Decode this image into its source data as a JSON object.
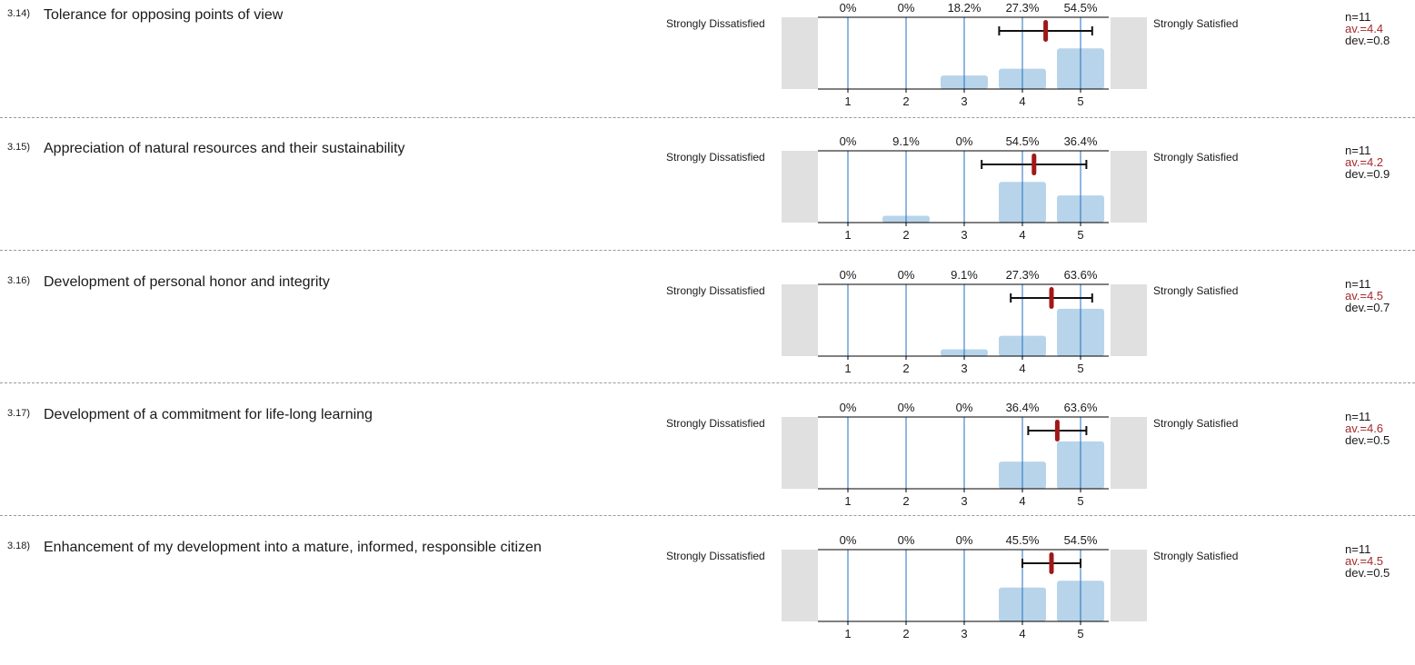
{
  "labels": {
    "left": "Strongly Dissatisfied",
    "right": "Strongly Satisfied"
  },
  "colors": {
    "bar": "#b7d4ea",
    "gridline": "#1f6fc0",
    "mean": "#a01818",
    "side": "#e0e0e0"
  },
  "chart_data": [
    {
      "type": "bar",
      "number": "3.14)",
      "title": "Tolerance for opposing points of view",
      "categories": [
        "1",
        "2",
        "3",
        "4",
        "5"
      ],
      "values": [
        0,
        0,
        18.2,
        27.3,
        54.5
      ],
      "value_labels": [
        "0%",
        "0%",
        "18.2%",
        "27.3%",
        "54.5%"
      ],
      "n": "n=11",
      "av": "av.=4.4",
      "dev": "dev.=0.8",
      "mean": 4.4,
      "sd": 0.8
    },
    {
      "type": "bar",
      "number": "3.15)",
      "title": "Appreciation of natural resources and their sustainability",
      "categories": [
        "1",
        "2",
        "3",
        "4",
        "5"
      ],
      "values": [
        0,
        9.1,
        0,
        54.5,
        36.4
      ],
      "value_labels": [
        "0%",
        "9.1%",
        "0%",
        "54.5%",
        "36.4%"
      ],
      "n": "n=11",
      "av": "av.=4.2",
      "dev": "dev.=0.9",
      "mean": 4.2,
      "sd": 0.9
    },
    {
      "type": "bar",
      "number": "3.16)",
      "title": "Development of personal honor and integrity",
      "categories": [
        "1",
        "2",
        "3",
        "4",
        "5"
      ],
      "values": [
        0,
        0,
        9.1,
        27.3,
        63.6
      ],
      "value_labels": [
        "0%",
        "0%",
        "9.1%",
        "27.3%",
        "63.6%"
      ],
      "n": "n=11",
      "av": "av.=4.5",
      "dev": "dev.=0.7",
      "mean": 4.5,
      "sd": 0.7
    },
    {
      "type": "bar",
      "number": "3.17)",
      "title": "Development of a commitment for life-long learning",
      "categories": [
        "1",
        "2",
        "3",
        "4",
        "5"
      ],
      "values": [
        0,
        0,
        0,
        36.4,
        63.6
      ],
      "value_labels": [
        "0%",
        "0%",
        "0%",
        "36.4%",
        "63.6%"
      ],
      "n": "n=11",
      "av": "av.=4.6",
      "dev": "dev.=0.5",
      "mean": 4.6,
      "sd": 0.5
    },
    {
      "type": "bar",
      "number": "3.18)",
      "title": "Enhancement of my development into a mature, informed, responsible citizen",
      "categories": [
        "1",
        "2",
        "3",
        "4",
        "5"
      ],
      "values": [
        0,
        0,
        0,
        45.5,
        54.5
      ],
      "value_labels": [
        "0%",
        "0%",
        "0%",
        "45.5%",
        "54.5%"
      ],
      "n": "n=11",
      "av": "av.=4.5",
      "dev": "dev.=0.5",
      "mean": 4.5,
      "sd": 0.5
    }
  ]
}
